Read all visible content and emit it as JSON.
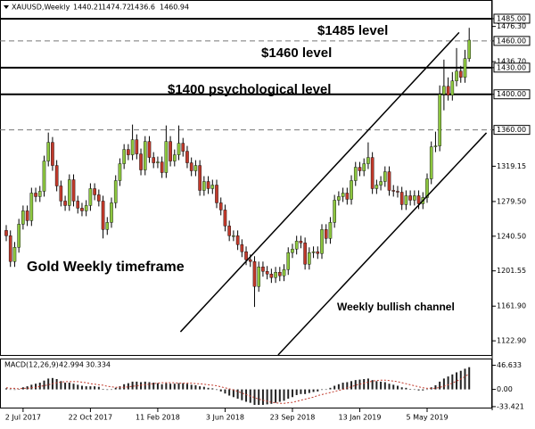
{
  "chart_data": {
    "type": "candlestick",
    "title": "XAUUSD,Weekly",
    "up_color": "#8cc63f",
    "down_color": "#c0392b",
    "open": [
      1247,
      1241,
      1212,
      1228,
      1254,
      1269,
      1258,
      1289,
      1285,
      1291,
      1325,
      1346,
      1320,
      1297,
      1280,
      1275,
      1304,
      1280,
      1272,
      1269,
      1275,
      1294,
      1287,
      1280,
      1248,
      1256,
      1278,
      1303,
      1322,
      1338,
      1332,
      1349,
      1333,
      1315,
      1347,
      1329,
      1323,
      1324,
      1312,
      1347,
      1325,
      1332,
      1345,
      1336,
      1323,
      1314,
      1320,
      1292,
      1302,
      1294,
      1298,
      1278,
      1270,
      1252,
      1241,
      1241,
      1231,
      1223,
      1214,
      1212,
      1184,
      1206,
      1201,
      1198,
      1194,
      1200,
      1196,
      1203,
      1222,
      1226,
      1235,
      1233,
      1209,
      1222,
      1223,
      1221,
      1248,
      1238,
      1256,
      1281,
      1285,
      1289,
      1282,
      1303,
      1318,
      1314,
      1322,
      1329,
      1294,
      1298,
      1302,
      1313,
      1292,
      1291,
      1290,
      1276,
      1286,
      1281,
      1286,
      1277,
      1284,
      1305,
      1341,
      1342,
      1400,
      1409,
      1399,
      1415,
      1426,
      1419,
      1440.21
    ],
    "high": [
      1253,
      1247,
      1234,
      1260,
      1275,
      1275,
      1295,
      1295,
      1297,
      1331,
      1357,
      1352,
      1326,
      1303,
      1286,
      1310,
      1310,
      1286,
      1278,
      1281,
      1300,
      1300,
      1293,
      1286,
      1262,
      1284,
      1309,
      1328,
      1344,
      1344,
      1366,
      1355,
      1339,
      1353,
      1353,
      1335,
      1330,
      1330,
      1365,
      1353,
      1338,
      1365,
      1351,
      1342,
      1329,
      1326,
      1326,
      1308,
      1308,
      1304,
      1304,
      1284,
      1276,
      1258,
      1247,
      1247,
      1237,
      1229,
      1220,
      1218,
      1212,
      1212,
      1207,
      1204,
      1206,
      1206,
      1209,
      1228,
      1232,
      1241,
      1241,
      1239,
      1228,
      1229,
      1229,
      1254,
      1254,
      1262,
      1287,
      1291,
      1295,
      1295,
      1309,
      1324,
      1324,
      1328,
      1346,
      1335,
      1304,
      1308,
      1319,
      1319,
      1298,
      1297,
      1296,
      1292,
      1292,
      1292,
      1292,
      1290,
      1311,
      1347,
      1358,
      1410,
      1439,
      1419,
      1425,
      1452,
      1432,
      1450,
      1474.72
    ],
    "low": [
      1235,
      1206,
      1206,
      1222,
      1248,
      1252,
      1252,
      1279,
      1279,
      1285,
      1319,
      1314,
      1291,
      1274,
      1269,
      1269,
      1274,
      1266,
      1263,
      1263,
      1269,
      1281,
      1274,
      1238,
      1242,
      1250,
      1272,
      1297,
      1316,
      1326,
      1326,
      1327,
      1309,
      1309,
      1323,
      1317,
      1317,
      1306,
      1306,
      1319,
      1319,
      1326,
      1330,
      1317,
      1308,
      1308,
      1286,
      1286,
      1288,
      1288,
      1272,
      1264,
      1246,
      1235,
      1235,
      1225,
      1217,
      1208,
      1206,
      1161,
      1178,
      1195,
      1192,
      1188,
      1188,
      1190,
      1190,
      1197,
      1216,
      1220,
      1227,
      1203,
      1203,
      1216,
      1215,
      1215,
      1232,
      1232,
      1250,
      1275,
      1279,
      1276,
      1276,
      1297,
      1308,
      1308,
      1316,
      1288,
      1288,
      1292,
      1296,
      1286,
      1285,
      1284,
      1270,
      1270,
      1275,
      1275,
      1271,
      1271,
      1278,
      1299,
      1335,
      1336,
      1382,
      1393,
      1393,
      1409,
      1413,
      1413,
      1436.6
    ],
    "close": [
      1241,
      1212,
      1228,
      1254,
      1269,
      1258,
      1289,
      1285,
      1291,
      1325,
      1346,
      1320,
      1297,
      1280,
      1275,
      1304,
      1280,
      1272,
      1269,
      1275,
      1294,
      1287,
      1280,
      1248,
      1256,
      1278,
      1303,
      1322,
      1338,
      1332,
      1349,
      1333,
      1315,
      1347,
      1329,
      1323,
      1324,
      1312,
      1347,
      1325,
      1332,
      1345,
      1336,
      1323,
      1314,
      1320,
      1292,
      1302,
      1294,
      1298,
      1278,
      1270,
      1252,
      1241,
      1241,
      1231,
      1223,
      1214,
      1212,
      1184,
      1206,
      1201,
      1198,
      1194,
      1200,
      1196,
      1203,
      1222,
      1226,
      1235,
      1233,
      1209,
      1222,
      1223,
      1221,
      1248,
      1238,
      1256,
      1281,
      1285,
      1289,
      1282,
      1303,
      1318,
      1314,
      1322,
      1329,
      1294,
      1298,
      1302,
      1313,
      1292,
      1291,
      1290,
      1276,
      1286,
      1281,
      1286,
      1277,
      1284,
      1305,
      1341,
      1342,
      1400,
      1409,
      1399,
      1415,
      1426,
      1419,
      1440.21,
      1460.94
    ],
    "ylim": [
      1107,
      1501
    ],
    "yticks": [
      {
        "value": 1485,
        "label": "1485.00"
      },
      {
        "value": 1476.3,
        "label": "1476.30"
      },
      {
        "value": 1460,
        "label": "1460.00"
      },
      {
        "value": 1436.7,
        "label": "1436.70"
      },
      {
        "value": 1430,
        "label": "1430.00"
      },
      {
        "value": 1400,
        "label": "1400.00"
      },
      {
        "value": 1360,
        "label": "1360.00"
      },
      {
        "value": 1319.15,
        "label": "1319.15"
      },
      {
        "value": 1279.5,
        "label": "1279.50"
      },
      {
        "value": 1240.5,
        "label": "1240.50"
      },
      {
        "value": 1201.55,
        "label": "1201.55"
      },
      {
        "value": 1161.9,
        "label": "1161.90"
      },
      {
        "value": 1122.9,
        "label": "1122.90"
      }
    ],
    "xticks": [
      {
        "value": 4,
        "label": "2 Jul 2017"
      },
      {
        "value": 20,
        "label": "22 Oct 2017"
      },
      {
        "value": 36,
        "label": "11 Feb 2018"
      },
      {
        "value": 52,
        "label": "3 Jun 2018"
      },
      {
        "value": 68,
        "label": "23 Sep 2018"
      },
      {
        "value": 84,
        "label": "13 Jan 2019"
      },
      {
        "value": 100,
        "label": "5 May 2019"
      }
    ],
    "levels": [
      {
        "value": 1485,
        "style": "solid"
      },
      {
        "value": 1460,
        "style": "dashed"
      },
      {
        "value": 1430,
        "style": "solid"
      },
      {
        "value": 1400,
        "style": "solid"
      },
      {
        "value": 1360,
        "style": "dashed"
      }
    ],
    "channels": [
      {
        "x": [
          41.4,
          107.6
        ],
        "y": [
          1133,
          1469.5
        ]
      },
      {
        "x": [
          64.6,
          114.1
        ],
        "y": [
          1107,
          1356.7
        ]
      }
    ],
    "annotations": [
      "$1485 level",
      "$1460 level",
      "$1400 psychological level",
      "Gold Weekly timeframe",
      "Weekly bullish channel"
    ],
    "macd": {
      "title": "MACD(12,26,9)",
      "values": [
        2,
        0,
        -1,
        1,
        4,
        6,
        9,
        11,
        13,
        17,
        21,
        22,
        20,
        16,
        13,
        13,
        11,
        9,
        7,
        6,
        6,
        6,
        5,
        1,
        -1,
        0,
        3,
        6,
        10,
        12,
        15,
        15,
        14,
        15,
        14,
        13,
        12,
        10,
        12,
        11,
        11,
        12,
        12,
        11,
        9,
        8,
        6,
        5,
        3,
        2,
        -1,
        -4,
        -8,
        -12,
        -15,
        -18,
        -21,
        -24,
        -26,
        -30,
        -30,
        -30,
        -29,
        -28,
        -26,
        -24,
        -22,
        -18,
        -15,
        -11,
        -9,
        -9,
        -7,
        -5,
        -4,
        -1,
        0,
        3,
        7,
        10,
        13,
        14,
        16,
        18,
        19,
        20,
        21,
        18,
        16,
        15,
        14,
        11,
        9,
        7,
        4,
        3,
        1,
        0,
        -2,
        -2,
        0,
        4,
        8,
        15,
        21,
        25,
        29,
        33,
        36,
        40,
        42.994
      ],
      "signal": [
        3,
        2,
        2,
        1,
        2,
        2,
        3,
        4,
        6,
        7,
        9,
        11,
        13,
        14,
        15,
        15,
        15,
        15,
        14,
        13,
        11,
        10,
        9,
        8,
        6,
        5,
        4,
        4,
        4,
        5,
        6,
        7,
        8,
        9,
        10,
        11,
        12,
        13,
        13,
        13,
        13,
        12,
        12,
        12,
        12,
        11,
        11,
        10,
        9,
        8,
        7,
        5,
        3,
        1,
        -1,
        -4,
        -7,
        -10,
        -13,
        -16,
        -19,
        -21,
        -23,
        -25,
        -26,
        -27,
        -27,
        -26,
        -25,
        -23,
        -21,
        -19,
        -17,
        -15,
        -12,
        -10,
        -8,
        -6,
        -4,
        -2,
        0,
        3,
        5,
        8,
        10,
        12,
        14,
        16,
        17,
        18,
        18,
        17,
        16,
        15,
        13,
        11,
        9,
        7,
        5,
        3,
        2,
        2,
        2,
        4,
        6,
        9,
        12,
        16,
        20,
        25,
        30.334
      ],
      "ylim": [
        -37,
        58
      ],
      "yticks": [
        46.633,
        {
          "value": 0,
          "label": "0.00"
        },
        -33.421
      ]
    }
  }
}
